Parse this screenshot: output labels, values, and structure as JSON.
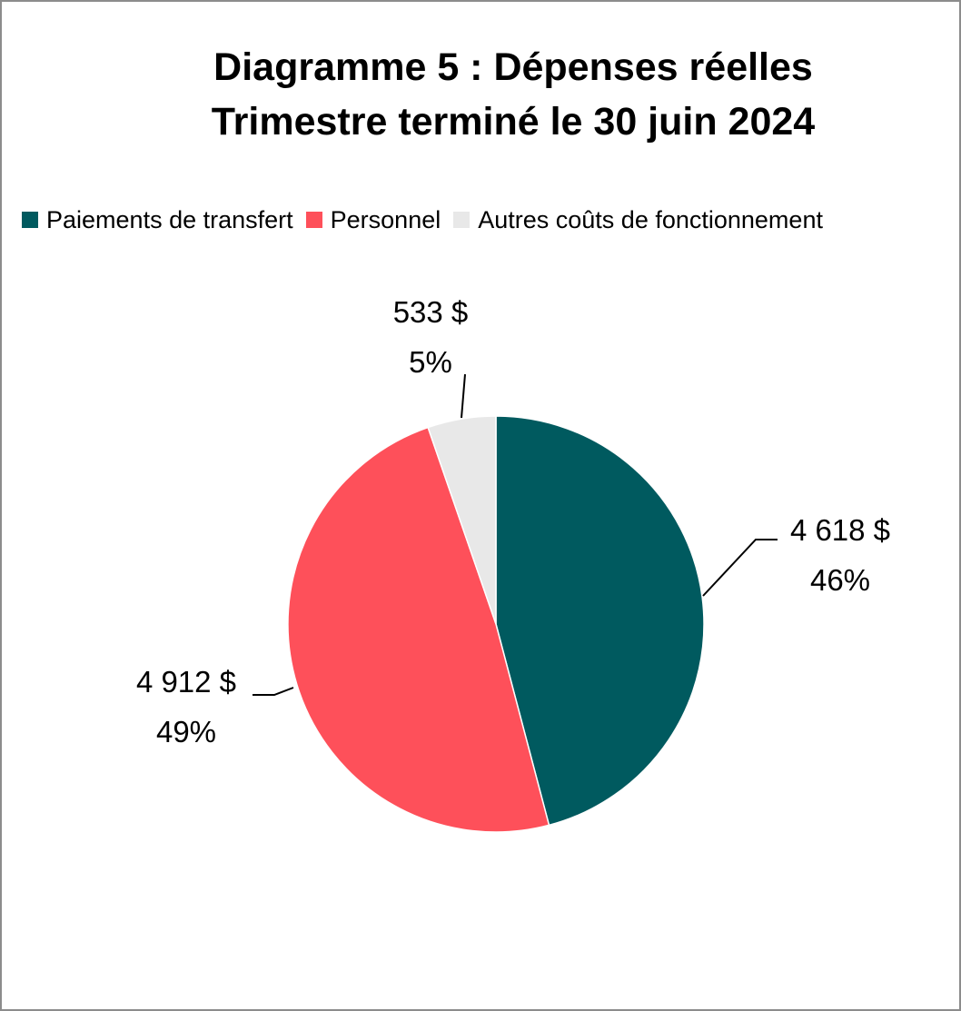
{
  "chart_data": {
    "type": "pie",
    "title": "Diagramme 5 : Dépenses réelles",
    "subtitle": "Trimestre terminé le 30 juin 2024",
    "legend_position": "top",
    "categories": [
      "Paiements de transfert",
      "Personnel",
      "Autres coûts de fonctionnement"
    ],
    "values": [
      4618,
      4912,
      533
    ],
    "value_labels": [
      "4 618 $",
      "4 912 $",
      "533 $"
    ],
    "percent_labels": [
      "46%",
      "49%",
      "5%"
    ],
    "colors": [
      "#005a5f",
      "#fe505a",
      "#e8e8e8"
    ],
    "start_angle": "12 o'clock",
    "direction": "clockwise"
  }
}
